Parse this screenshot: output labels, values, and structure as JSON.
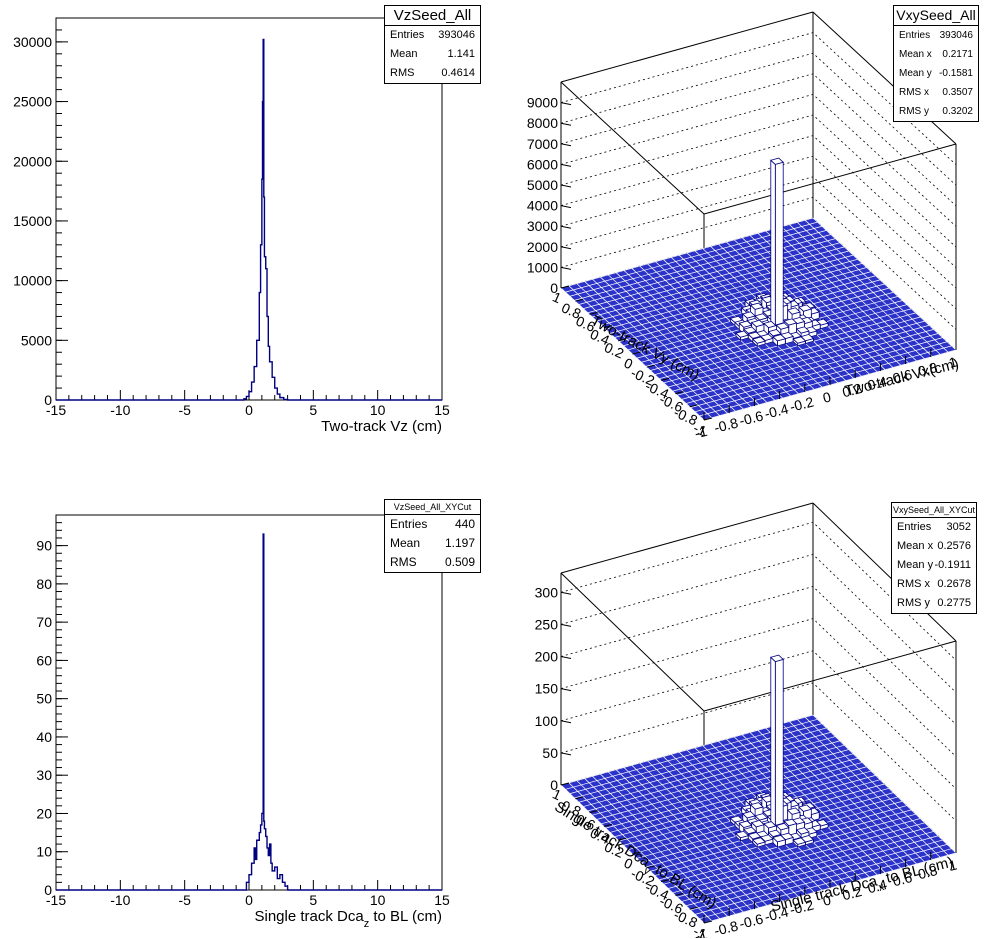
{
  "chart_data": [
    {
      "type": "histogram",
      "name": "VzSeed_All",
      "stats": [
        {
          "label": "Entries",
          "value": "393046"
        },
        {
          "label": "Mean",
          "value": "1.141"
        },
        {
          "label": "RMS",
          "value": "0.4614"
        }
      ],
      "xlabel": "Two-track Vz (cm)",
      "ylabel": "",
      "xlim": [
        -15,
        15
      ],
      "ylim": [
        0,
        32000
      ],
      "xticks": [
        "-15",
        "-10",
        "-5",
        "0",
        "5",
        "10",
        "15"
      ],
      "yticks": [
        "0",
        "5000",
        "10000",
        "15000",
        "20000",
        "25000",
        "30000"
      ],
      "x": [
        -0.8,
        -0.4,
        -0.2,
        0.0,
        0.2,
        0.4,
        0.6,
        0.8,
        0.9,
        1.0,
        1.05,
        1.1,
        1.15,
        1.2,
        1.3,
        1.4,
        1.5,
        1.6,
        1.8,
        2.0,
        2.2,
        2.4,
        2.7,
        3.0
      ],
      "values": [
        0,
        100,
        300,
        700,
        1500,
        2800,
        5000,
        9000,
        13000,
        18500,
        25000,
        30200,
        17000,
        12000,
        11000,
        7000,
        4500,
        3200,
        1900,
        1000,
        500,
        200,
        50,
        0
      ]
    },
    {
      "type": "lego",
      "name": "VxySeed_All",
      "stats": [
        {
          "label": "Entries",
          "value": "393046"
        },
        {
          "label": "Mean x",
          "value": "0.2171"
        },
        {
          "label": "Mean y",
          "value": "-0.1581"
        },
        {
          "label": "RMS x",
          "value": "0.3507"
        },
        {
          "label": "RMS y",
          "value": "0.3202"
        }
      ],
      "xlabel": "Two-track Vx(cm)",
      "ylabel": "Two-track Vy (cm)",
      "xlim": [
        -1,
        1
      ],
      "ylim": [
        -1,
        1
      ],
      "zlim": [
        0,
        10000
      ],
      "xticks": [
        "-1",
        "-0.8",
        "-0.6",
        "-0.4",
        "-0.2",
        "0",
        "0.2",
        "0.4",
        "0.6",
        "0.8",
        "1"
      ],
      "yticks": [
        "-1",
        "-0.8",
        "-0.6",
        "-0.4",
        "-0.2",
        "0",
        "0.2",
        "0.4",
        "0.6",
        "0.8",
        "1"
      ],
      "zticks": [
        "0",
        "1000",
        "2000",
        "3000",
        "4000",
        "5000",
        "6000",
        "7000",
        "8000",
        "9000"
      ],
      "peak": {
        "x": 0.1,
        "y": -0.1,
        "z": 7800
      }
    },
    {
      "type": "histogram",
      "name": "VzSeed_All_XYCut",
      "stats": [
        {
          "label": "Entries",
          "value": "440"
        },
        {
          "label": "Mean",
          "value": "1.197"
        },
        {
          "label": "RMS",
          "value": "0.509"
        }
      ],
      "xlabel": "Single track Dca",
      "xlabel_sub": "z",
      "xlabel_suffix": " to BL (cm)",
      "ylabel": "",
      "xlim": [
        -15,
        15
      ],
      "ylim": [
        0,
        98
      ],
      "xticks": [
        "-15",
        "-10",
        "-5",
        "0",
        "5",
        "10",
        "15"
      ],
      "yticks": [
        "0",
        "10",
        "20",
        "30",
        "40",
        "50",
        "60",
        "70",
        "80",
        "90"
      ],
      "x": [
        -0.5,
        -0.2,
        0.0,
        0.2,
        0.4,
        0.5,
        0.6,
        0.8,
        0.9,
        1.0,
        1.1,
        1.15,
        1.2,
        1.3,
        1.4,
        1.5,
        1.6,
        1.7,
        1.8,
        2.0,
        2.2,
        2.4,
        2.6,
        2.8,
        3.0
      ],
      "values": [
        0,
        2,
        4,
        7,
        11,
        8,
        13,
        15,
        17,
        20,
        93,
        18,
        16,
        14,
        11,
        9,
        12,
        7,
        5,
        6,
        3,
        4,
        2,
        1,
        0
      ]
    },
    {
      "type": "lego",
      "name": "VxySeed_All_XYCut",
      "stats": [
        {
          "label": "Entries",
          "value": "3052"
        },
        {
          "label": "Mean x",
          "value": "0.2576"
        },
        {
          "label": "Mean y",
          "value": "-0.1911"
        },
        {
          "label": "RMS x",
          "value": "0.2678"
        },
        {
          "label": "RMS y",
          "value": "0.2775"
        }
      ],
      "xlabel": "Single track Dca",
      "xlabel_sub": "x",
      "xlabel_suffix": " to BL (cm)",
      "ylabel": "Single track Dca",
      "ylabel_sub": "y",
      "ylabel_suffix": " to BL (cm)",
      "xlim": [
        -1,
        1
      ],
      "ylim": [
        -1,
        1
      ],
      "zlim": [
        0,
        330
      ],
      "xticks": [
        "-1",
        "-0.8",
        "-0.6",
        "-0.4",
        "-0.2",
        "0",
        "0.2",
        "0.4",
        "0.6",
        "0.8",
        "1"
      ],
      "yticks": [
        "-1",
        "-0.8",
        "-0.6",
        "-0.4",
        "-0.2",
        "0",
        "0.2",
        "0.4",
        "0.6",
        "0.8",
        "1"
      ],
      "zticks": [
        "0",
        "50",
        "100",
        "150",
        "200",
        "250",
        "300"
      ],
      "peak": {
        "x": 0.1,
        "y": -0.1,
        "z": 255
      }
    }
  ],
  "colors": {
    "line": "#000080",
    "surface": "#2B32C8",
    "axis": "#000000"
  }
}
